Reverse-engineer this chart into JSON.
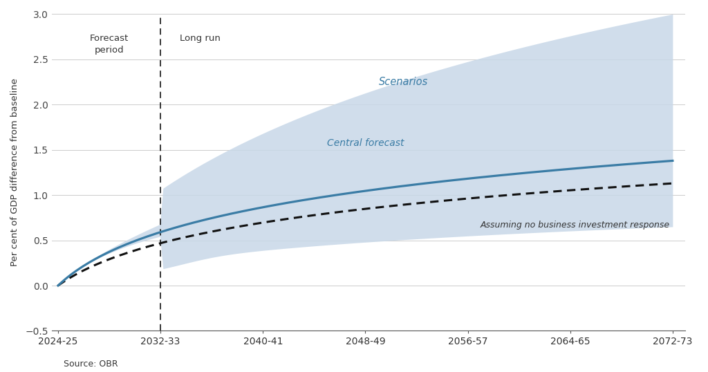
{
  "title": "",
  "xlabel": "",
  "ylabel": "Per cent of GDP difference from baseline",
  "source": "Source: OBR",
  "x_tick_labels": [
    "2024-25",
    "2032-33",
    "2040-41",
    "2048-49",
    "2056-57",
    "2064-65",
    "2072-73"
  ],
  "x_tick_positions": [
    0,
    8,
    16,
    24,
    32,
    40,
    48
  ],
  "ylim": [
    -0.5,
    3.0
  ],
  "xlim": [
    -0.5,
    49
  ],
  "yticks": [
    -0.5,
    0.0,
    0.5,
    1.0,
    1.5,
    2.0,
    2.5,
    3.0
  ],
  "dashed_line_x": 8,
  "forecast_label": "Forecast\nperiod",
  "longrun_label": "Long run",
  "scenarios_label": "Scenarios",
  "central_label": "Central forecast",
  "nobiz_label": "Assuming no business investment response",
  "central_color": "#3a7ca5",
  "band_color": "#c8d8e8",
  "band_alpha": 0.85,
  "nobiz_color": "#111111",
  "bg_color": "#ffffff",
  "grid_color": "#cccccc",
  "n_points": 200
}
